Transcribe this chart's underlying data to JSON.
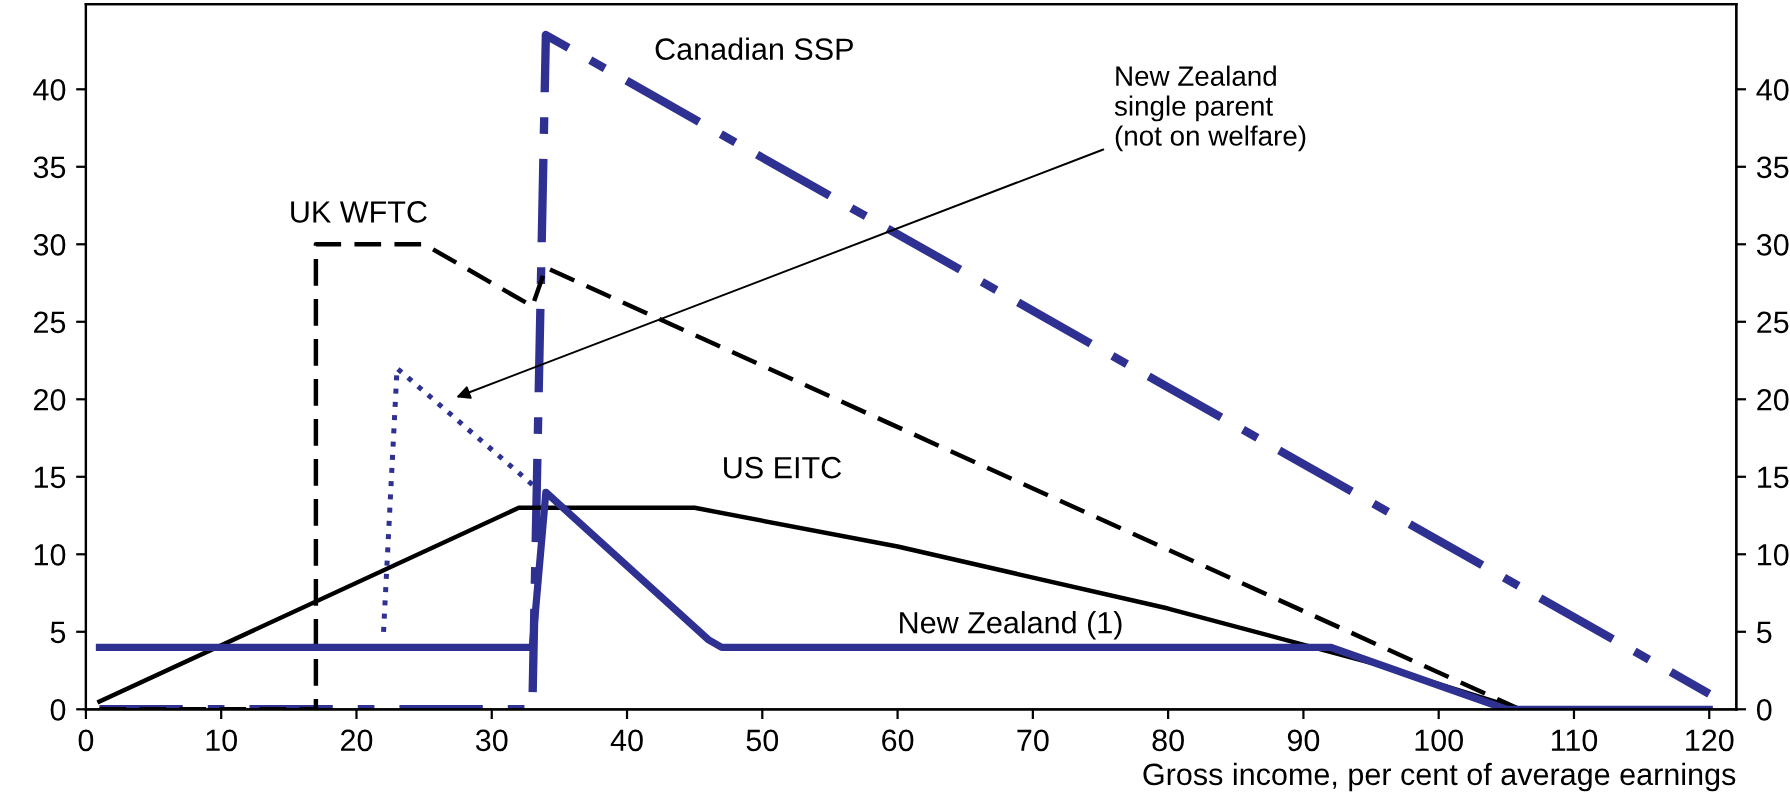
{
  "chart_data": {
    "type": "line",
    "xlabel": "Gross income, per cent of average earnings",
    "xlim": [
      0,
      122
    ],
    "xticks": [
      0,
      10,
      20,
      30,
      40,
      50,
      60,
      70,
      80,
      90,
      100,
      110,
      120
    ],
    "ylim": [
      0,
      45.5
    ],
    "yticks": [
      0,
      5,
      10,
      15,
      20,
      25,
      30,
      35,
      40
    ],
    "y2lim": [
      0,
      45.5
    ],
    "y2ticks": [
      0,
      5,
      10,
      15,
      20,
      25,
      30,
      35,
      40
    ],
    "grid": false,
    "legend": false,
    "marker": "none",
    "series": [
      {
        "name": "Canadian SSP",
        "color": "#2e3192",
        "line_style": "dashdot",
        "x": [
          1,
          33,
          34,
          120
        ],
        "values": [
          0,
          0,
          43.5,
          1
        ]
      },
      {
        "name": "UK WFTC",
        "color": "#000000",
        "line_style": "dashed",
        "x": [
          1,
          17,
          17,
          25,
          33,
          34,
          106,
          120
        ],
        "values": [
          0,
          0,
          30,
          30,
          26,
          28.5,
          0,
          0
        ]
      },
      {
        "color": "#2e3192",
        "line_style": "dotted",
        "x": [
          22,
          23,
          33
        ],
        "values": [
          5,
          22,
          14.5
        ]
      },
      {
        "name": "US EITC",
        "color": "#000000",
        "line_style": "solid",
        "x": [
          1,
          32,
          45,
          60,
          80,
          95,
          106,
          120
        ],
        "values": [
          0.5,
          13,
          13,
          10.5,
          6.5,
          3,
          0,
          0
        ]
      },
      {
        "name": "New Zealand (1)",
        "color": "#2e3192",
        "line_style": "solid",
        "x": [
          1,
          33,
          33,
          34,
          46,
          47,
          92,
          105,
          120
        ],
        "values": [
          4,
          4,
          4,
          14,
          4.5,
          4,
          4,
          0,
          0
        ]
      }
    ],
    "annotations": [
      {
        "text": "New Zealand\nsingle parent\n(not on welfare)",
        "x": 27,
        "y": 20
      }
    ]
  }
}
